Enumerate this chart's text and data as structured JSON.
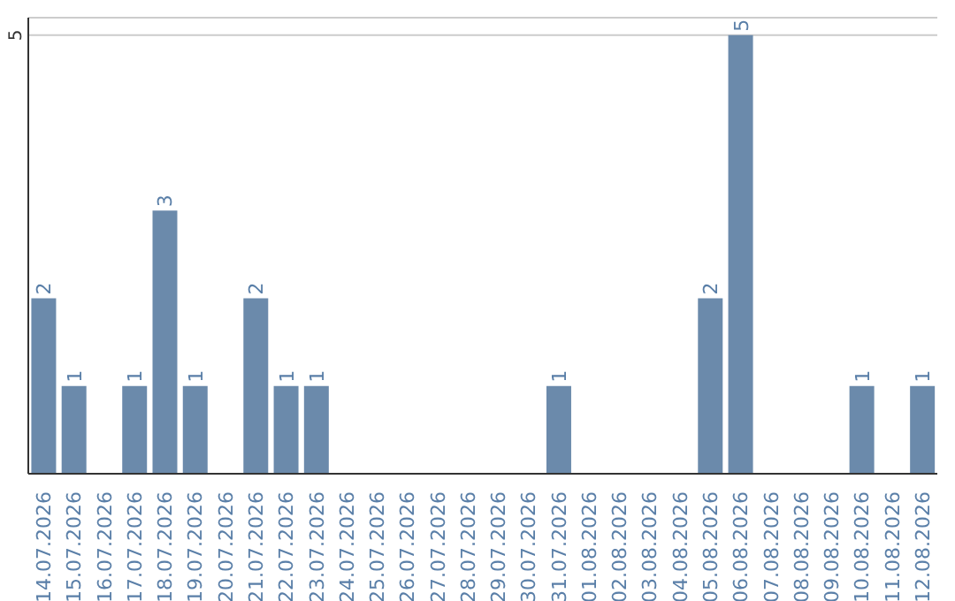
{
  "chart_data": {
    "type": "bar",
    "categories": [
      "14.07.2026",
      "15.07.2026",
      "16.07.2026",
      "17.07.2026",
      "18.07.2026",
      "19.07.2026",
      "20.07.2026",
      "21.07.2026",
      "22.07.2026",
      "23.07.2026",
      "24.07.2026",
      "25.07.2026",
      "26.07.2026",
      "27.07.2026",
      "28.07.2026",
      "29.07.2026",
      "30.07.2026",
      "31.07.2026",
      "01.08.2026",
      "02.08.2026",
      "03.08.2026",
      "04.08.2026",
      "05.08.2026",
      "06.08.2026",
      "07.08.2026",
      "08.08.2026",
      "09.08.2026",
      "10.08.2026",
      "11.08.2026",
      "12.08.2026"
    ],
    "values": [
      2,
      1,
      0,
      1,
      3,
      1,
      0,
      2,
      1,
      1,
      0,
      0,
      0,
      0,
      0,
      0,
      0,
      1,
      0,
      0,
      0,
      0,
      2,
      5,
      0,
      0,
      0,
      1,
      0,
      1
    ],
    "value_labels": [
      "2",
      "1",
      null,
      "1",
      "3",
      "1",
      null,
      "2",
      "1",
      "1",
      null,
      null,
      null,
      null,
      null,
      null,
      null,
      "1",
      null,
      null,
      null,
      null,
      "2",
      "5",
      null,
      null,
      null,
      "1",
      null,
      "1"
    ],
    "color": "#6b8aab",
    "ylim": [
      0,
      5.2
    ],
    "yticks": [
      5
    ],
    "grid": "y"
  }
}
